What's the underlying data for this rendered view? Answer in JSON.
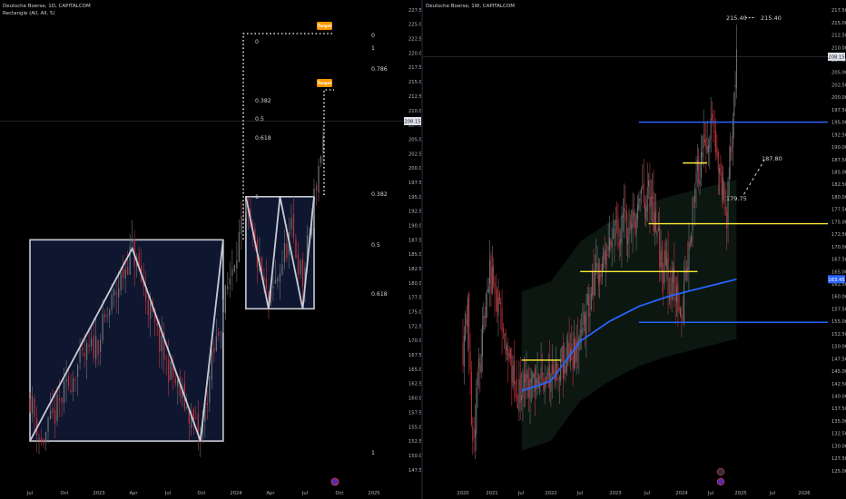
{
  "colors": {
    "background": "#000000",
    "up_candle": "#6e7176",
    "down_candle": "#c0323a",
    "pattern_box_fill": "#0f1730",
    "pattern_line": "#c8cbd4",
    "fib_dots": "#d1d4dc",
    "tag": "#ff9800",
    "blue_level": "#2962ff",
    "yellow_level": "#ffeb3b",
    "ma_line": "#2962ff"
  },
  "left_chart": {
    "header": {
      "title": "Deutsche Boerse, 1D, CAPITALCOM",
      "indicator": "Rectangle (All, All, 5)"
    },
    "last_price": "208.15",
    "fib_labels": [
      "0",
      "1",
      "0.786",
      "0.382",
      "0.5",
      "0.618",
      "1",
      "0.382",
      "0.5",
      "0.618",
      "1"
    ],
    "target_tags": [
      "Target",
      "Target"
    ],
    "bottom_icon": "tradingview-bubble-icon",
    "chart_data": {
      "type": "candlestick",
      "title": "Deutsche Boerse, 1D, CAPITALCOM",
      "ylim": [
        146.0,
        228.0
      ],
      "y_ticks": [
        147.5,
        150.0,
        152.5,
        155.0,
        157.5,
        160.0,
        162.5,
        165.0,
        167.5,
        170.0,
        172.5,
        175.0,
        177.5,
        180.0,
        182.5,
        185.0,
        187.5,
        190.0,
        192.5,
        195.0,
        197.5,
        200.0,
        202.5,
        205.0,
        207.5,
        210.0,
        212.5,
        215.0,
        217.5,
        220.0,
        222.5,
        225.0,
        227.5
      ],
      "x_ticks": [
        "Jul",
        "Oct",
        "2023",
        "Apr",
        "Jul",
        "Oct",
        "2024",
        "Apr",
        "Jul",
        "Oct",
        "2025"
      ],
      "price_path": [
        {
          "x": "Jul 2022",
          "y": 160.0
        },
        {
          "x": "Aug 2022",
          "y": 152.0
        },
        {
          "x": "Nov 2022",
          "y": 165.0
        },
        {
          "x": "Jan 2023",
          "y": 170.0
        },
        {
          "x": "Apr 2023",
          "y": 186.0
        },
        {
          "x": "Jun 2023",
          "y": 172.0
        },
        {
          "x": "Jul 2023",
          "y": 166.0
        },
        {
          "x": "Oct 2023",
          "y": 153.0
        },
        {
          "x": "Nov 2023",
          "y": 166.0
        },
        {
          "x": "Jan 2024",
          "y": 185.0
        },
        {
          "x": "Feb 2024",
          "y": 192.0
        },
        {
          "x": "Apr 2024",
          "y": 176.0
        },
        {
          "x": "Jun 2024",
          "y": 189.0
        },
        {
          "x": "Jul 2024",
          "y": 180.0
        },
        {
          "x": "Aug 2024",
          "y": 195.0
        },
        {
          "x": "Sep 2024",
          "y": 208.15
        }
      ],
      "rectangles": [
        {
          "x_start": "Jul 2022",
          "x_end": "Dec 2023",
          "y_top": 187.5,
          "y_bottom": 152.5
        },
        {
          "x_start": "Feb 2024",
          "x_end": "Aug 2024",
          "y_top": 195.0,
          "y_bottom": 175.5
        }
      ],
      "zigzag_1": [
        {
          "x": "Jul 2022",
          "y": 152.5
        },
        {
          "x": "Apr 2023",
          "y": 186.0
        },
        {
          "x": "Oct 2023",
          "y": 152.5
        },
        {
          "x": "Dec 2023",
          "y": 187.5
        }
      ],
      "zigzag_2": [
        {
          "x": "Feb 2024",
          "y": 195.0
        },
        {
          "x": "Apr 2024",
          "y": 175.5
        },
        {
          "x": "May 2024",
          "y": 195.0
        },
        {
          "x": "Jul 2024",
          "y": 175.5
        },
        {
          "x": "Aug 2024",
          "y": 195.0
        }
      ]
    }
  },
  "right_chart": {
    "header": {
      "title": "Deutsche Boerse, 1W, CAPITALCOM"
    },
    "last_price": "208.15",
    "ma_price": "163.45",
    "annotations": [
      "215.40",
      "215.40",
      "187.80",
      "179.75"
    ],
    "bottom_icons": [
      "lightning-icon",
      "tradingview-bubble-icon"
    ],
    "chart_data": {
      "type": "candlestick",
      "title": "Deutsche Boerse, 1W, CAPITALCOM",
      "ylim": [
        124.0,
        218.0
      ],
      "y_ticks": [
        125.0,
        127.5,
        130.0,
        132.5,
        135.0,
        137.5,
        140.0,
        142.5,
        145.0,
        147.5,
        150.0,
        152.5,
        155.0,
        157.5,
        160.0,
        162.5,
        165.0,
        167.5,
        170.0,
        172.5,
        175.0,
        177.5,
        180.0,
        182.5,
        185.0,
        187.5,
        190.0,
        192.5,
        195.0,
        197.5,
        200.0,
        202.5,
        205.0,
        207.5,
        210.0,
        212.5,
        215.0,
        217.5
      ],
      "x_ticks": [
        "2020",
        "2021",
        "Jul",
        "2022",
        "Jul",
        "2023",
        "Jul",
        "2024",
        "Jul",
        "2025",
        "Jul",
        "2026"
      ],
      "price_path": [
        {
          "x": "Jan 2020",
          "y": 150.0
        },
        {
          "x": "Feb 2020",
          "y": 160.0
        },
        {
          "x": "Mar 2020",
          "y": 130.0
        },
        {
          "x": "Jun 2020",
          "y": 165.0
        },
        {
          "x": "Aug 2020",
          "y": 160.0
        },
        {
          "x": "Dec 2020",
          "y": 140.0
        },
        {
          "x": "Jul 2021",
          "y": 145.0
        },
        {
          "x": "Jan 2022",
          "y": 150.0
        },
        {
          "x": "Mar 2022",
          "y": 160.0
        },
        {
          "x": "Jun 2022",
          "y": 170.0
        },
        {
          "x": "Mar 2023",
          "y": 180.0
        },
        {
          "x": "Jun 2023",
          "y": 166.0
        },
        {
          "x": "Oct 2023",
          "y": 158.0
        },
        {
          "x": "Jan 2024",
          "y": 185.0
        },
        {
          "x": "Apr 2024",
          "y": 195.0
        },
        {
          "x": "Jul 2024",
          "y": 176.0
        },
        {
          "x": "Sep 2024",
          "y": 208.15
        }
      ],
      "ma_path": [
        {
          "x": "Jan 2021",
          "y": 141.0
        },
        {
          "x": "Jul 2021",
          "y": 143.0
        },
        {
          "x": "Jan 2022",
          "y": 151.0
        },
        {
          "x": "Jul 2022",
          "y": 155.0
        },
        {
          "x": "Jan 2023",
          "y": 158.0
        },
        {
          "x": "Jul 2023",
          "y": 160.0
        },
        {
          "x": "Jan 2024",
          "y": 161.5
        },
        {
          "x": "Sep 2024",
          "y": 163.45
        }
      ],
      "levels": [
        {
          "color": "blue",
          "y": 195.0,
          "x_start": "Jan 2023",
          "x_end": "Jul 2026"
        },
        {
          "color": "yellow",
          "y": 186.8,
          "x_start": "Oct 2023",
          "x_end": "Mar 2024"
        },
        {
          "color": "yellow",
          "y": 174.6,
          "x_start": "Mar 2023",
          "x_end": "Jul 2026"
        },
        {
          "color": "yellow",
          "y": 165.0,
          "x_start": "Jan 2022",
          "x_end": "Jan 2024"
        },
        {
          "color": "blue",
          "y": 154.8,
          "x_start": "Jan 2023",
          "x_end": "Jul 2026"
        },
        {
          "color": "yellow",
          "y": 147.2,
          "x_start": "Jan 2021",
          "x_end": "Sep 2021"
        }
      ],
      "projection": [
        {
          "x": "Sep 2024",
          "y": 179.75
        },
        {
          "x": "Nov 2024",
          "y": 187.8
        }
      ]
    }
  }
}
